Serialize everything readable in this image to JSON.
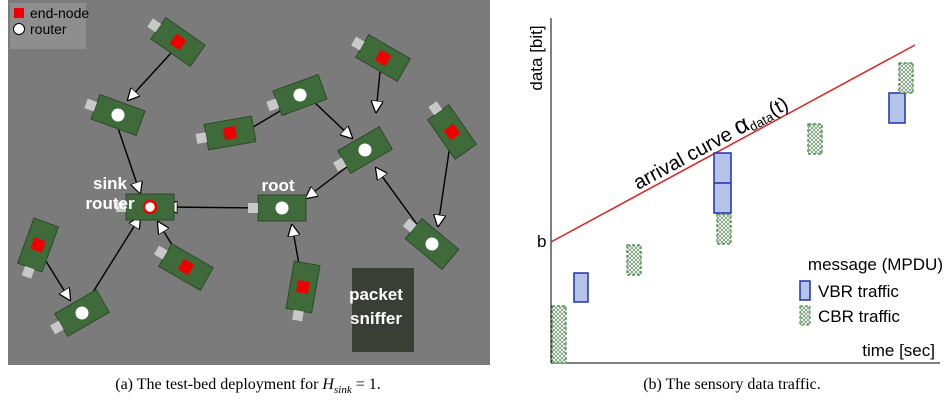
{
  "left_panel": {
    "legend": [
      "end-node",
      "router"
    ],
    "labels": {
      "sink": "sink",
      "sink_router": "router",
      "root": "root",
      "packet": "packet",
      "sniffer": "sniffer"
    },
    "caption": {
      "text": "(a) The test-bed deployment for",
      "math_var": "H",
      "math_sub": "sink",
      "math_rest": "= 1."
    }
  },
  "right_panel": {
    "y_label": "data [bit]",
    "x_label": "time [sec]",
    "b_label": "b",
    "curve_label": "arrival curve",
    "alpha": "α",
    "alpha_sub": "data",
    "alpha_arg": "(t)",
    "legend_title": "message (MPDU)",
    "legend": [
      "VBR traffic",
      "CBR traffic"
    ],
    "caption": "(b) The sensory data traffic."
  }
}
